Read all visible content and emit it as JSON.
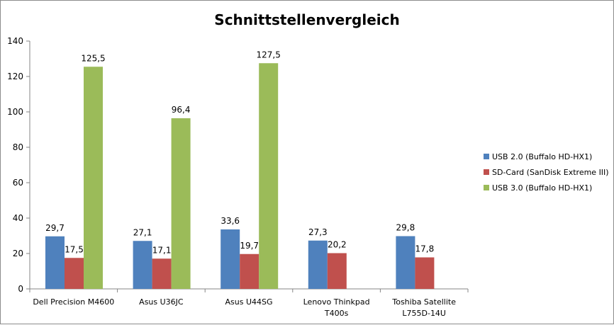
{
  "chart_data": {
    "type": "bar",
    "title": "Schnittstellenvergleich",
    "xlabel": "",
    "ylabel": "",
    "ylim": [
      0,
      140
    ],
    "yticks": [
      0,
      20,
      40,
      60,
      80,
      100,
      120,
      140
    ],
    "grid": false,
    "legend_position": "right",
    "categories": [
      [
        "Dell Precision M4600"
      ],
      [
        "Asus U36JC"
      ],
      [
        "Asus U44SG"
      ],
      [
        "Lenovo Thinkpad",
        "T400s"
      ],
      [
        "Toshiba Satellite",
        "L755D-14U"
      ]
    ],
    "series": [
      {
        "name": "USB 2.0 (Buffalo HD-HX1)",
        "color": "#4F81BD",
        "values": [
          29.7,
          27.1,
          33.6,
          27.3,
          29.8
        ],
        "labels": [
          "29,7",
          "27,1",
          "33,6",
          "27,3",
          "29,8"
        ]
      },
      {
        "name": "SD-Card (SanDisk Extreme III)",
        "color": "#C0504D",
        "values": [
          17.5,
          17.1,
          19.7,
          20.2,
          17.8
        ],
        "labels": [
          "17,5",
          "17,1",
          "19,7",
          "20,2",
          "17,8"
        ]
      },
      {
        "name": "USB 3.0 (Buffalo HD-HX1)",
        "color": "#9BBB59",
        "values": [
          125.5,
          96.4,
          127.5,
          null,
          null
        ],
        "labels": [
          "125,5",
          "96,4",
          "127,5",
          null,
          null
        ]
      }
    ]
  }
}
